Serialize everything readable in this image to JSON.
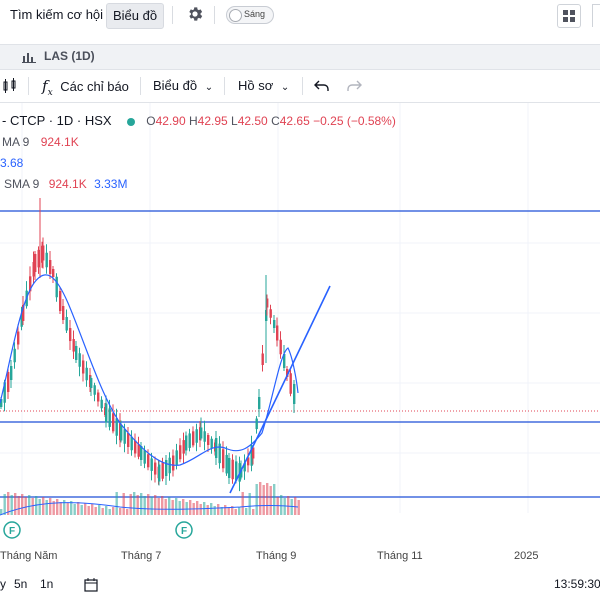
{
  "topnav": {
    "search_label": "Tìm kiếm cơ hội",
    "chart_label": "Biểu đồ",
    "theme_label": "Sáng"
  },
  "tab": {
    "label": "LAS (1D)"
  },
  "toolbar": {
    "indicators_label": "Các chỉ báo",
    "chart_type_label": "Biểu đồ",
    "profile_label": "Hồ sơ"
  },
  "legend": {
    "symbol_line": "- CTCP · 1D · HSX",
    "ohlc": {
      "o_label": "O",
      "o_value": "42.90",
      "h_label": "H",
      "h_value": "42.95",
      "l_label": "L",
      "l_value": "42.50",
      "c_label": "C",
      "c_value": "42.65",
      "change": "−0.25 (−0.58%)"
    },
    "row2": {
      "label": "MA 9",
      "value": "924.1K"
    },
    "row3": {
      "value": "3.68"
    },
    "row4": {
      "label": "SMA 9",
      "value1": "924.1K",
      "value2": "3.33M"
    }
  },
  "colors": {
    "up": "#26a69a",
    "down": "#e04353",
    "ma": "#2962ff",
    "hline": "#1e4fd8"
  },
  "chart_data": {
    "type": "candlestick",
    "x_tick_labels": [
      "Tháng Năm",
      "Tháng 7",
      "Tháng 9",
      "Tháng 11",
      "2025"
    ],
    "last_close": 42.65,
    "marker_labels": [
      "F",
      "F"
    ]
  },
  "bottom": {
    "range_5d": "5n",
    "range_1y": "1n",
    "time": "13:59:30"
  }
}
